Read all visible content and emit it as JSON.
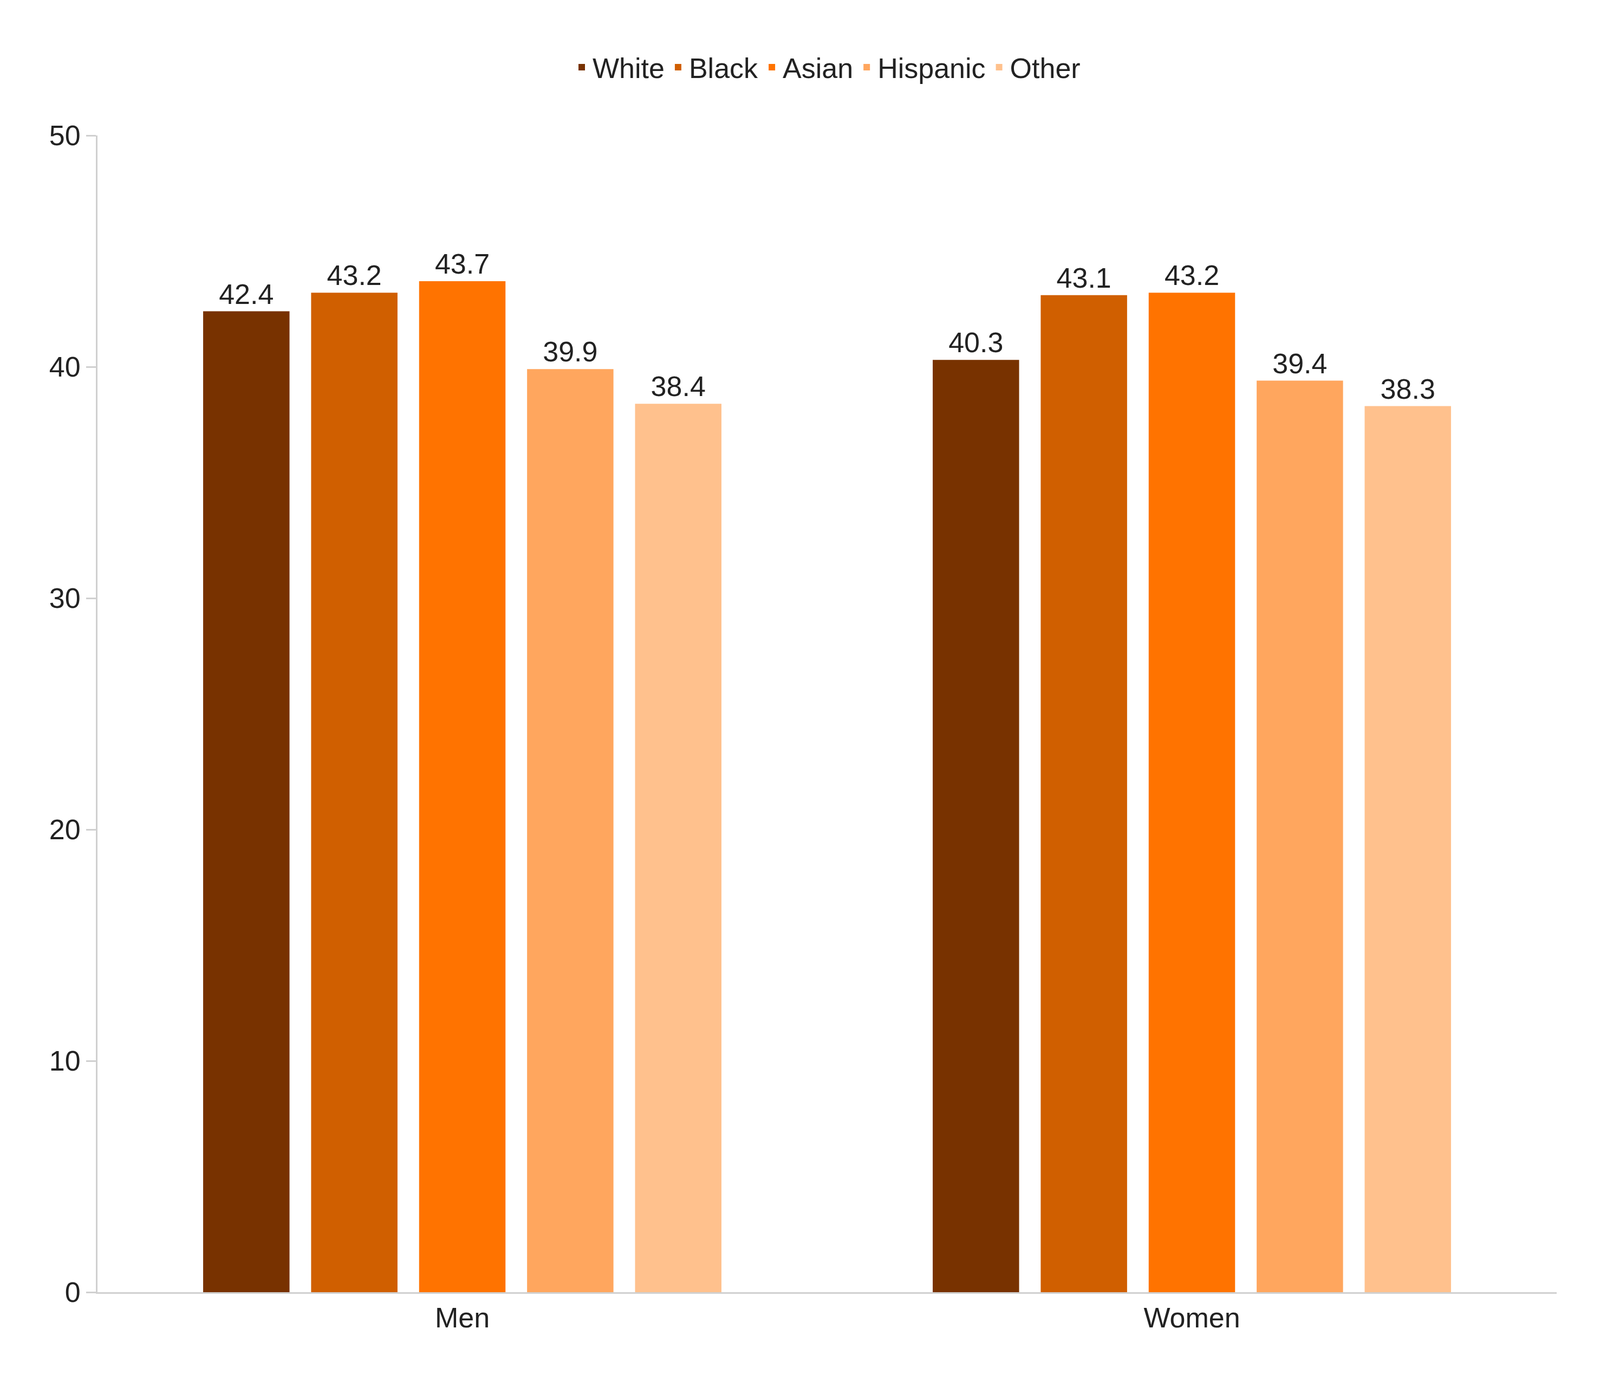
{
  "chart_data": {
    "type": "bar",
    "categories": [
      "Men",
      "Women"
    ],
    "series": [
      {
        "name": "White",
        "color": "#783200",
        "values": [
          42.4,
          40.3
        ]
      },
      {
        "name": "Black",
        "color": "#D05F00",
        "values": [
          43.2,
          43.1
        ]
      },
      {
        "name": "Asian",
        "color": "#FF7300",
        "values": [
          43.7,
          43.2
        ]
      },
      {
        "name": "Hispanic",
        "color": "#FFA65E",
        "values": [
          39.9,
          39.4
        ]
      },
      {
        "name": "Other",
        "color": "#FFC18D",
        "values": [
          38.4,
          38.3
        ]
      }
    ],
    "ylim": [
      0,
      50
    ],
    "yticks": [
      0,
      10,
      20,
      30,
      40,
      50
    ],
    "grid": false,
    "legend": "top",
    "data_labels": true
  }
}
